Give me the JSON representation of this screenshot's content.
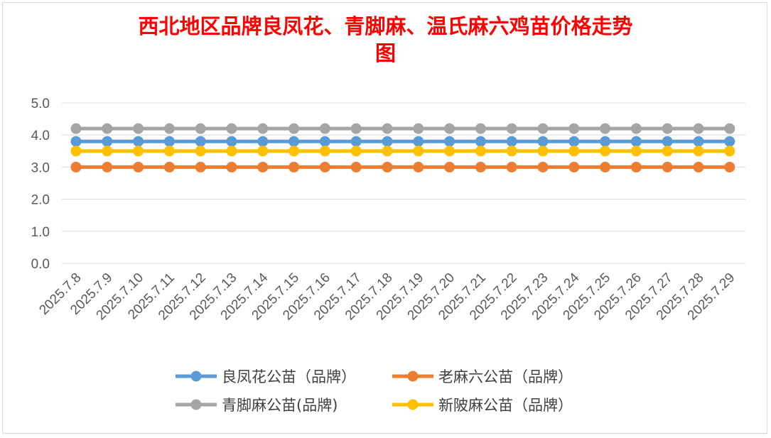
{
  "chart_data": {
    "type": "line",
    "title": "西北地区品牌良凤花、青脚麻、温氏麻六鸡苗价格走势\n图",
    "xlabel": "",
    "ylabel": "",
    "ylim": [
      0,
      5
    ],
    "y_ticks": [
      "0.0",
      "1.0",
      "2.0",
      "3.0",
      "4.0",
      "5.0"
    ],
    "grid": true,
    "legend_position": "bottom",
    "categories": [
      "2025.7.8",
      "2025.7.9",
      "2025.7.10",
      "2025.7.11",
      "2025.7.12",
      "2025.7.13",
      "2025.7.14",
      "2025.7.15",
      "2025.7.16",
      "2025.7.17",
      "2025.7.18",
      "2025.7.19",
      "2025.7.20",
      "2025.7.21",
      "2025.7.22",
      "2025.7.23",
      "2025.7.24",
      "2025.7.25",
      "2025.7.26",
      "2025.7.27",
      "2025.7.28",
      "2025.7.29"
    ],
    "series": [
      {
        "name": "良凤花公苗（品牌）",
        "color": "#5b9bd5",
        "values": [
          3.8,
          3.8,
          3.8,
          3.8,
          3.8,
          3.8,
          3.8,
          3.8,
          3.8,
          3.8,
          3.8,
          3.8,
          3.8,
          3.8,
          3.8,
          3.8,
          3.8,
          3.8,
          3.8,
          3.8,
          3.8,
          3.8
        ]
      },
      {
        "name": "老麻六公苗（品牌）",
        "color": "#ed7d31",
        "values": [
          3.0,
          3.0,
          3.0,
          3.0,
          3.0,
          3.0,
          3.0,
          3.0,
          3.0,
          3.0,
          3.0,
          3.0,
          3.0,
          3.0,
          3.0,
          3.0,
          3.0,
          3.0,
          3.0,
          3.0,
          3.0,
          3.0
        ]
      },
      {
        "name": "青脚麻公苗(品牌)",
        "color": "#a5a5a5",
        "values": [
          4.2,
          4.2,
          4.2,
          4.2,
          4.2,
          4.2,
          4.2,
          4.2,
          4.2,
          4.2,
          4.2,
          4.2,
          4.2,
          4.2,
          4.2,
          4.2,
          4.2,
          4.2,
          4.2,
          4.2,
          4.2,
          4.2
        ]
      },
      {
        "name": "新陂麻公苗（品牌）",
        "color": "#ffc000",
        "values": [
          3.5,
          3.5,
          3.5,
          3.5,
          3.5,
          3.5,
          3.5,
          3.5,
          3.5,
          3.5,
          3.5,
          3.5,
          3.5,
          3.5,
          3.5,
          3.5,
          3.5,
          3.5,
          3.5,
          3.5,
          3.5,
          3.5
        ]
      }
    ]
  }
}
